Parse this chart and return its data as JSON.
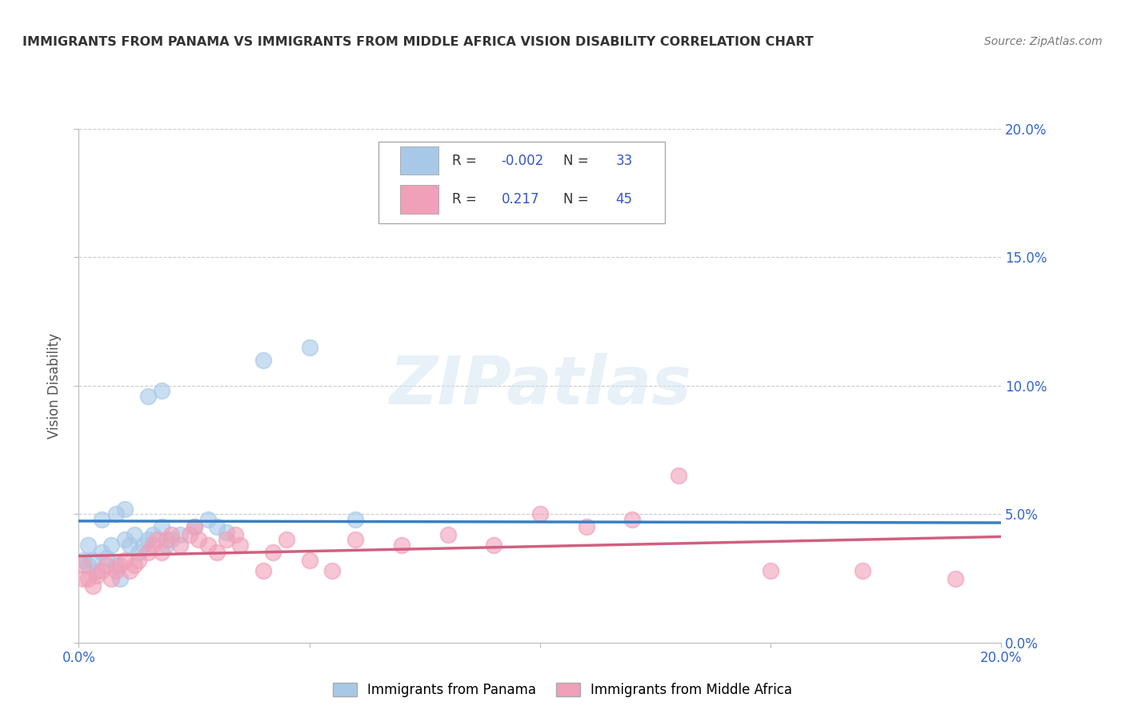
{
  "title": "IMMIGRANTS FROM PANAMA VS IMMIGRANTS FROM MIDDLE AFRICA VISION DISABILITY CORRELATION CHART",
  "source": "Source: ZipAtlas.com",
  "ylabel": "Vision Disability",
  "xlim": [
    0.0,
    0.2
  ],
  "ylim": [
    0.0,
    0.2
  ],
  "x_ticks": [
    0.0,
    0.05,
    0.1,
    0.15,
    0.2
  ],
  "y_ticks": [
    0.0,
    0.05,
    0.1,
    0.15,
    0.2
  ],
  "x_tick_labels": [
    "0.0%",
    "",
    "",
    "",
    "20.0%"
  ],
  "y_tick_labels_right": [
    "0.0%",
    "5.0%",
    "10.0%",
    "15.0%",
    "20.0%"
  ],
  "panama_color": "#a8c8e8",
  "africa_color": "#f0a0b8",
  "panama_line_color": "#3a7fc1",
  "africa_line_color": "#d06080",
  "panama_R": -0.002,
  "panama_N": 33,
  "africa_R": 0.217,
  "africa_N": 45,
  "watermark": "ZIPatlas",
  "panama_scatter": [
    [
      0.002,
      0.03
    ],
    [
      0.003,
      0.032
    ],
    [
      0.004,
      0.028
    ],
    [
      0.005,
      0.035
    ],
    [
      0.006,
      0.033
    ],
    [
      0.007,
      0.038
    ],
    [
      0.008,
      0.03
    ],
    [
      0.009,
      0.025
    ],
    [
      0.01,
      0.04
    ],
    [
      0.011,
      0.038
    ],
    [
      0.012,
      0.042
    ],
    [
      0.013,
      0.035
    ],
    [
      0.014,
      0.038
    ],
    [
      0.015,
      0.04
    ],
    [
      0.016,
      0.042
    ],
    [
      0.018,
      0.045
    ],
    [
      0.019,
      0.038
    ],
    [
      0.02,
      0.04
    ],
    [
      0.022,
      0.042
    ],
    [
      0.025,
      0.045
    ],
    [
      0.028,
      0.048
    ],
    [
      0.03,
      0.045
    ],
    [
      0.032,
      0.043
    ],
    [
      0.015,
      0.096
    ],
    [
      0.018,
      0.098
    ],
    [
      0.04,
      0.11
    ],
    [
      0.05,
      0.115
    ],
    [
      0.005,
      0.048
    ],
    [
      0.008,
      0.05
    ],
    [
      0.01,
      0.052
    ],
    [
      0.06,
      0.048
    ],
    [
      0.002,
      0.038
    ],
    [
      0.001,
      0.032
    ]
  ],
  "africa_scatter": [
    [
      0.002,
      0.025
    ],
    [
      0.003,
      0.022
    ],
    [
      0.004,
      0.026
    ],
    [
      0.005,
      0.028
    ],
    [
      0.006,
      0.03
    ],
    [
      0.007,
      0.025
    ],
    [
      0.008,
      0.028
    ],
    [
      0.009,
      0.03
    ],
    [
      0.01,
      0.032
    ],
    [
      0.011,
      0.028
    ],
    [
      0.012,
      0.03
    ],
    [
      0.013,
      0.032
    ],
    [
      0.015,
      0.035
    ],
    [
      0.016,
      0.038
    ],
    [
      0.017,
      0.04
    ],
    [
      0.018,
      0.035
    ],
    [
      0.019,
      0.04
    ],
    [
      0.02,
      0.042
    ],
    [
      0.022,
      0.038
    ],
    [
      0.024,
      0.042
    ],
    [
      0.025,
      0.045
    ],
    [
      0.026,
      0.04
    ],
    [
      0.028,
      0.038
    ],
    [
      0.03,
      0.035
    ],
    [
      0.032,
      0.04
    ],
    [
      0.034,
      0.042
    ],
    [
      0.035,
      0.038
    ],
    [
      0.04,
      0.028
    ],
    [
      0.042,
      0.035
    ],
    [
      0.045,
      0.04
    ],
    [
      0.05,
      0.032
    ],
    [
      0.055,
      0.028
    ],
    [
      0.06,
      0.04
    ],
    [
      0.07,
      0.038
    ],
    [
      0.08,
      0.042
    ],
    [
      0.09,
      0.038
    ],
    [
      0.1,
      0.05
    ],
    [
      0.11,
      0.045
    ],
    [
      0.12,
      0.048
    ],
    [
      0.13,
      0.065
    ],
    [
      0.15,
      0.028
    ],
    [
      0.17,
      0.028
    ],
    [
      0.19,
      0.025
    ],
    [
      0.001,
      0.03
    ],
    [
      0.001,
      0.025
    ]
  ]
}
